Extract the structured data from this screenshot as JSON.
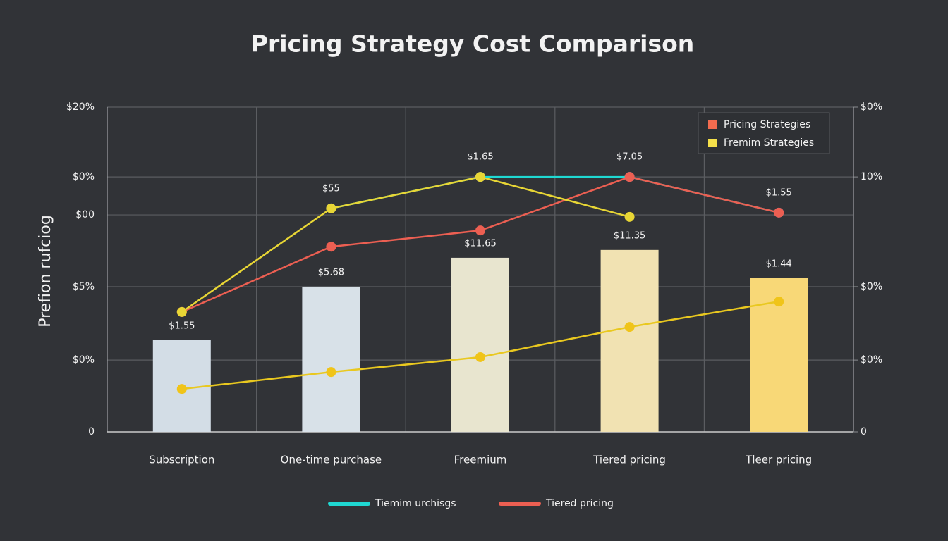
{
  "chart_data": {
    "type": "bar",
    "title": "Pricing Strategy Cost Comparison",
    "ylabel": "Prefion rufciog",
    "categories": [
      "Subscription",
      "One-time purchase",
      "Freemium",
      "Tiered pricing",
      "Tleer pricing"
    ],
    "values": [
      28.2,
      44.7,
      53.6,
      56.0,
      47.3
    ],
    "colors": [
      "#d3dde6",
      "#d8e1e8",
      "#e8e5cf",
      "#f1e2b2",
      "#f8d877"
    ],
    "bar_labels": [
      "$1.55",
      "$5.68",
      "$11.65",
      "$11.35",
      "$1.44"
    ],
    "point_labels": [
      null,
      "$55",
      "$1.65",
      "$7.05",
      "$1.55"
    ],
    "series": [
      {
        "name": "Tiemim urchisgs",
        "color": "#1fd8d2",
        "marker": "#6f9be8",
        "values": [
          null,
          68.8,
          78.5,
          78.5,
          67.5
        ]
      },
      {
        "name": "Tiered pricing",
        "color": "#ec5f52",
        "marker": "#ec5f52",
        "values": [
          36.9,
          57.0,
          62.0,
          78.5,
          67.5
        ]
      },
      {
        "color": "#e8d635",
        "marker": "#e8d635",
        "values": [
          36.9,
          68.8,
          78.5,
          66.2,
          null
        ]
      },
      {
        "color": "#e9c81f",
        "marker": "#f0c419",
        "values": [
          13.2,
          18.4,
          23.0,
          32.3,
          40.1
        ]
      }
    ],
    "legend_box": [
      {
        "name": "Pricing Strategies",
        "color": "#f26b4f"
      },
      {
        "name": "Fremim Strategies",
        "color": "#f5e04a"
      }
    ],
    "ylim": [
      0,
      100
    ],
    "yticks": [
      0,
      {
        "value": 22.1,
        "label": "$0%"
      },
      {
        "value": 44.7,
        "label": "$5%"
      },
      {
        "value": 66.8,
        "label": "$00"
      },
      {
        "value": 78.5,
        "label": "$0%"
      },
      {
        "value": 100,
        "label": "$20%"
      }
    ],
    "y2lim": [
      0,
      100
    ],
    "y2ticks": [
      0,
      {
        "value": 22.1,
        "label": "$0%"
      },
      {
        "value": 44.7,
        "label": "$0%"
      },
      {
        "value": 78.5,
        "label": "10%"
      },
      {
        "value": 100,
        "label": "$0%"
      }
    ],
    "grid": true
  }
}
